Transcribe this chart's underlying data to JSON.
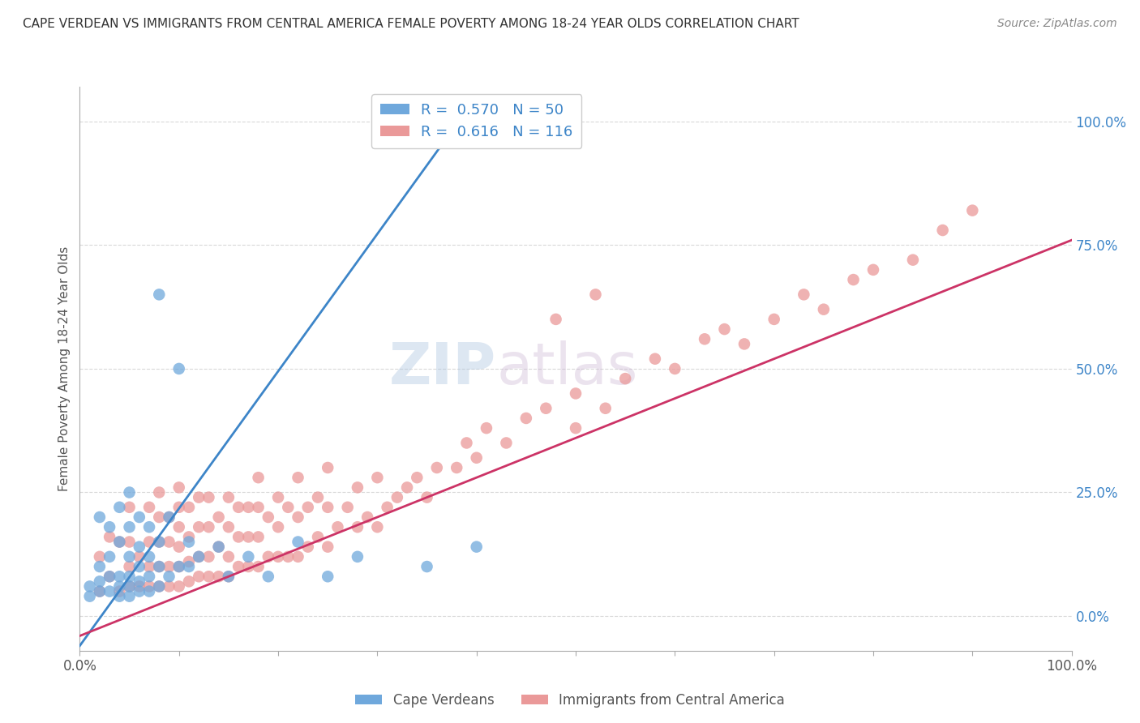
{
  "title": "CAPE VERDEAN VS IMMIGRANTS FROM CENTRAL AMERICA FEMALE POVERTY AMONG 18-24 YEAR OLDS CORRELATION CHART",
  "source": "Source: ZipAtlas.com",
  "ylabel": "Female Poverty Among 18-24 Year Olds",
  "xlim": [
    0,
    1
  ],
  "ylim": [
    -0.07,
    1.07
  ],
  "ytick_positions": [
    0.0,
    0.25,
    0.5,
    0.75,
    1.0
  ],
  "ytick_labels_right": [
    "0.0%",
    "25.0%",
    "50.0%",
    "75.0%",
    "100.0%"
  ],
  "blue_R": 0.57,
  "blue_N": 50,
  "pink_R": 0.616,
  "pink_N": 116,
  "blue_label": "Cape Verdeans",
  "pink_label": "Immigrants from Central America",
  "blue_color": "#6fa8dc",
  "pink_color": "#ea9999",
  "blue_line_color": "#3d85c8",
  "pink_line_color": "#cc3366",
  "background_color": "#ffffff",
  "grid_color": "#d9d9d9",
  "title_color": "#333333",
  "title_fontsize": 11,
  "legend_fontsize": 13,
  "blue_trend_x0": 0.0,
  "blue_trend_y0": -0.06,
  "blue_trend_x1": 0.4,
  "blue_trend_y1": 1.05,
  "pink_trend_x0": 0.0,
  "pink_trend_y0": -0.04,
  "pink_trend_x1": 1.0,
  "pink_trend_y1": 0.76,
  "blue_scatter_x": [
    0.01,
    0.01,
    0.02,
    0.02,
    0.02,
    0.02,
    0.03,
    0.03,
    0.03,
    0.03,
    0.04,
    0.04,
    0.04,
    0.04,
    0.04,
    0.05,
    0.05,
    0.05,
    0.05,
    0.05,
    0.05,
    0.06,
    0.06,
    0.06,
    0.06,
    0.06,
    0.07,
    0.07,
    0.07,
    0.07,
    0.08,
    0.08,
    0.08,
    0.08,
    0.09,
    0.09,
    0.1,
    0.1,
    0.11,
    0.11,
    0.12,
    0.14,
    0.15,
    0.17,
    0.19,
    0.22,
    0.25,
    0.28,
    0.35,
    0.4
  ],
  "blue_scatter_y": [
    0.04,
    0.06,
    0.05,
    0.07,
    0.1,
    0.2,
    0.05,
    0.08,
    0.12,
    0.18,
    0.04,
    0.06,
    0.08,
    0.15,
    0.22,
    0.04,
    0.06,
    0.08,
    0.12,
    0.18,
    0.25,
    0.05,
    0.07,
    0.1,
    0.14,
    0.2,
    0.05,
    0.08,
    0.12,
    0.18,
    0.06,
    0.1,
    0.15,
    0.65,
    0.08,
    0.2,
    0.1,
    0.5,
    0.1,
    0.15,
    0.12,
    0.14,
    0.08,
    0.12,
    0.08,
    0.15,
    0.08,
    0.12,
    0.1,
    0.14
  ],
  "pink_scatter_x": [
    0.02,
    0.02,
    0.03,
    0.03,
    0.04,
    0.04,
    0.05,
    0.05,
    0.05,
    0.05,
    0.06,
    0.06,
    0.07,
    0.07,
    0.07,
    0.07,
    0.08,
    0.08,
    0.08,
    0.08,
    0.08,
    0.09,
    0.09,
    0.09,
    0.09,
    0.1,
    0.1,
    0.1,
    0.1,
    0.1,
    0.1,
    0.11,
    0.11,
    0.11,
    0.11,
    0.12,
    0.12,
    0.12,
    0.12,
    0.13,
    0.13,
    0.13,
    0.13,
    0.14,
    0.14,
    0.14,
    0.15,
    0.15,
    0.15,
    0.15,
    0.16,
    0.16,
    0.16,
    0.17,
    0.17,
    0.17,
    0.18,
    0.18,
    0.18,
    0.18,
    0.19,
    0.19,
    0.2,
    0.2,
    0.2,
    0.21,
    0.21,
    0.22,
    0.22,
    0.22,
    0.23,
    0.23,
    0.24,
    0.24,
    0.25,
    0.25,
    0.25,
    0.26,
    0.27,
    0.28,
    0.28,
    0.29,
    0.3,
    0.3,
    0.31,
    0.32,
    0.33,
    0.34,
    0.35,
    0.36,
    0.38,
    0.39,
    0.4,
    0.41,
    0.43,
    0.45,
    0.47,
    0.5,
    0.5,
    0.53,
    0.55,
    0.58,
    0.6,
    0.63,
    0.65,
    0.67,
    0.7,
    0.73,
    0.75,
    0.78,
    0.8,
    0.84,
    0.87,
    0.9,
    0.48,
    0.52
  ],
  "pink_scatter_y": [
    0.05,
    0.12,
    0.08,
    0.16,
    0.05,
    0.15,
    0.06,
    0.1,
    0.15,
    0.22,
    0.06,
    0.12,
    0.06,
    0.1,
    0.15,
    0.22,
    0.06,
    0.1,
    0.15,
    0.2,
    0.25,
    0.06,
    0.1,
    0.15,
    0.2,
    0.06,
    0.1,
    0.14,
    0.18,
    0.22,
    0.26,
    0.07,
    0.11,
    0.16,
    0.22,
    0.08,
    0.12,
    0.18,
    0.24,
    0.08,
    0.12,
    0.18,
    0.24,
    0.08,
    0.14,
    0.2,
    0.08,
    0.12,
    0.18,
    0.24,
    0.1,
    0.16,
    0.22,
    0.1,
    0.16,
    0.22,
    0.1,
    0.16,
    0.22,
    0.28,
    0.12,
    0.2,
    0.12,
    0.18,
    0.24,
    0.12,
    0.22,
    0.12,
    0.2,
    0.28,
    0.14,
    0.22,
    0.16,
    0.24,
    0.14,
    0.22,
    0.3,
    0.18,
    0.22,
    0.18,
    0.26,
    0.2,
    0.18,
    0.28,
    0.22,
    0.24,
    0.26,
    0.28,
    0.24,
    0.3,
    0.3,
    0.35,
    0.32,
    0.38,
    0.35,
    0.4,
    0.42,
    0.38,
    0.45,
    0.42,
    0.48,
    0.52,
    0.5,
    0.56,
    0.58,
    0.55,
    0.6,
    0.65,
    0.62,
    0.68,
    0.7,
    0.72,
    0.78,
    0.82,
    0.6,
    0.65
  ],
  "watermark_zip": "ZIP",
  "watermark_atlas": "atlas"
}
